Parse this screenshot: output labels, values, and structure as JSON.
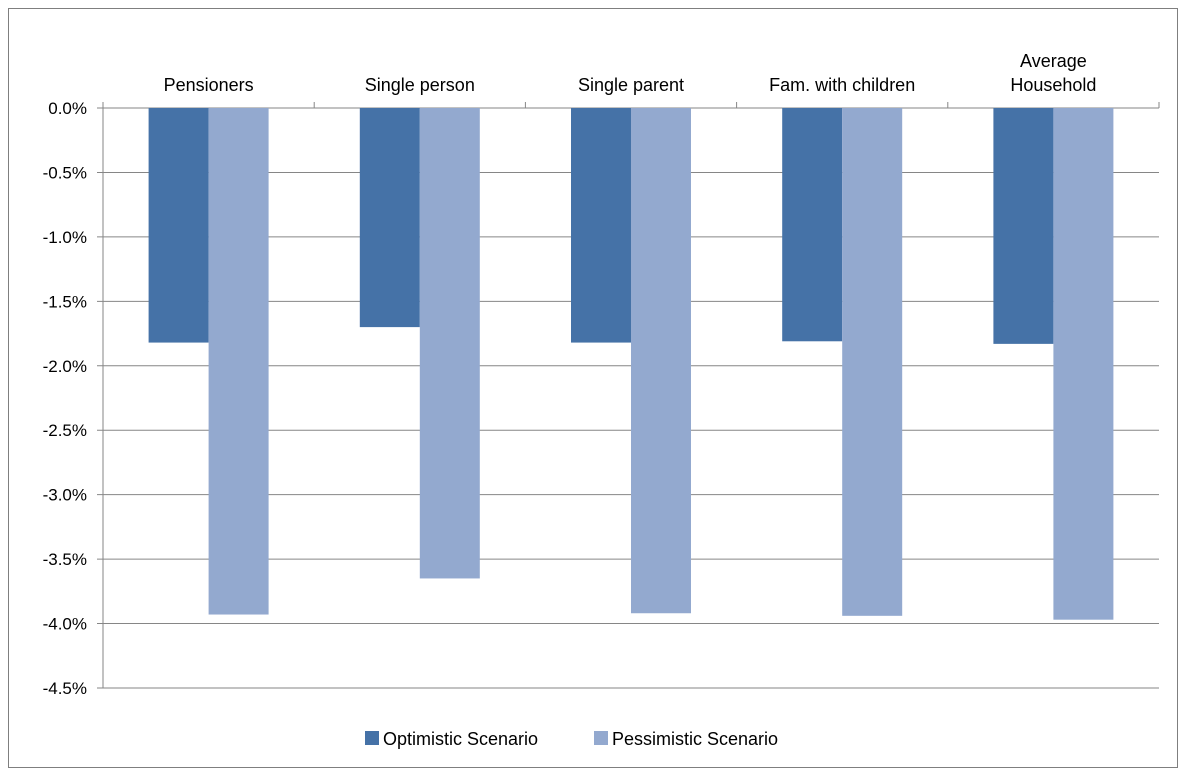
{
  "chart_data": {
    "type": "bar",
    "title": "",
    "xlabel": "",
    "ylabel": "",
    "categories": [
      [
        "Pensioners"
      ],
      [
        "Single person"
      ],
      [
        "Single parent"
      ],
      [
        "Fam. with children"
      ],
      [
        "Average",
        "Household"
      ]
    ],
    "series": [
      {
        "name": "Optimistic Scenario",
        "color": "#4572a7",
        "values": [
          -1.82,
          -1.7,
          -1.82,
          -1.81,
          -1.83
        ]
      },
      {
        "name": "Pessimistic Scenario",
        "color": "#93a9cf",
        "values": [
          -3.93,
          -3.65,
          -3.92,
          -3.94,
          -3.97
        ]
      }
    ],
    "ylim": [
      -4.5,
      0.0
    ],
    "yticks": [
      0.0,
      -0.5,
      -1.0,
      -1.5,
      -2.0,
      -2.5,
      -3.0,
      -3.5,
      -4.0,
      -4.5
    ],
    "ytick_labels": [
      "0.0%",
      "-0.5%",
      "-1.0%",
      "-1.5%",
      "-2.0%",
      "-2.5%",
      "-3.0%",
      "-3.5%",
      "-4.0%",
      "-4.5%"
    ],
    "category_labels_position": "top",
    "grid": true,
    "legend": "bottom"
  }
}
